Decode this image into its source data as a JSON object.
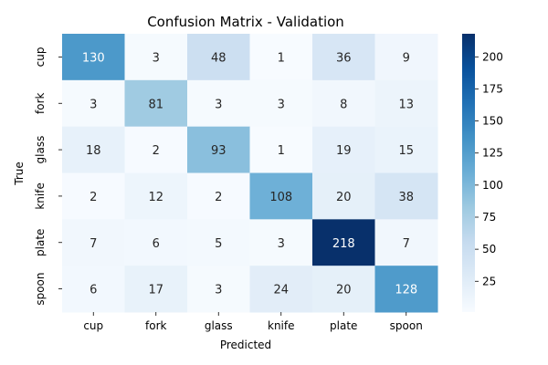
{
  "chart_data": {
    "type": "heatmap",
    "title": "Confusion Matrix - Validation",
    "xlabel": "Predicted",
    "ylabel": "True",
    "x_categories": [
      "cup",
      "fork",
      "glass",
      "knife",
      "plate",
      "spoon"
    ],
    "y_categories": [
      "cup",
      "fork",
      "glass",
      "knife",
      "plate",
      "spoon"
    ],
    "values": [
      [
        130,
        3,
        48,
        1,
        36,
        9
      ],
      [
        3,
        81,
        3,
        3,
        8,
        13
      ],
      [
        18,
        2,
        93,
        1,
        19,
        15
      ],
      [
        2,
        12,
        2,
        108,
        20,
        38
      ],
      [
        7,
        6,
        5,
        3,
        218,
        7
      ],
      [
        6,
        17,
        3,
        24,
        20,
        128
      ]
    ],
    "colormap": "Blues",
    "color_range": [
      1,
      218
    ],
    "colorbar_ticks": [
      25,
      50,
      75,
      100,
      125,
      150,
      175,
      200
    ],
    "annotations": true,
    "grid": false
  }
}
